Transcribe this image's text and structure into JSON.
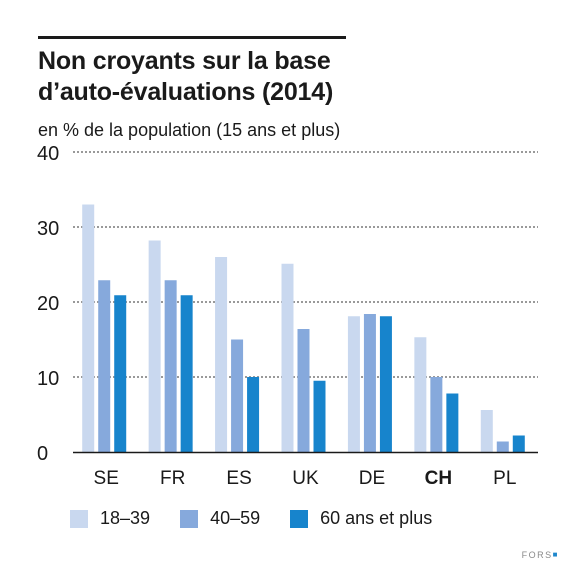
{
  "header": {
    "title_line1": "Non croyants sur la base",
    "title_line2": "d’auto-évaluations (2014)",
    "subtitle": "en % de la population (15 ans et plus)"
  },
  "footer": {
    "logo_text": "FORS",
    "logo_mark": "■"
  },
  "colors": {
    "series1": "#c9d8ef",
    "series2": "#86a9dc",
    "series3": "#1784cc",
    "gridline": "#333333"
  },
  "chart_data": {
    "type": "bar",
    "title": "Non croyants sur la base d’auto-évaluations (2014)",
    "ylabel": "en % de la population (15 ans et plus)",
    "categories": [
      "SE",
      "FR",
      "ES",
      "UK",
      "DE",
      "CH",
      "PL"
    ],
    "highlighted_category": "CH",
    "ylim": [
      0,
      40
    ],
    "yticks": [
      0,
      10,
      20,
      30,
      40
    ],
    "grid": true,
    "legend_position": "bottom",
    "series": [
      {
        "name": "18–39",
        "values": [
          33,
          28.2,
          26,
          25.1,
          18.1,
          15.3,
          5.6
        ]
      },
      {
        "name": "40–59",
        "values": [
          22.9,
          22.9,
          15,
          16.4,
          18.4,
          10,
          1.4
        ]
      },
      {
        "name": "60 ans et plus",
        "values": [
          20.9,
          20.9,
          10,
          9.5,
          18.1,
          7.8,
          2.2
        ]
      }
    ]
  }
}
